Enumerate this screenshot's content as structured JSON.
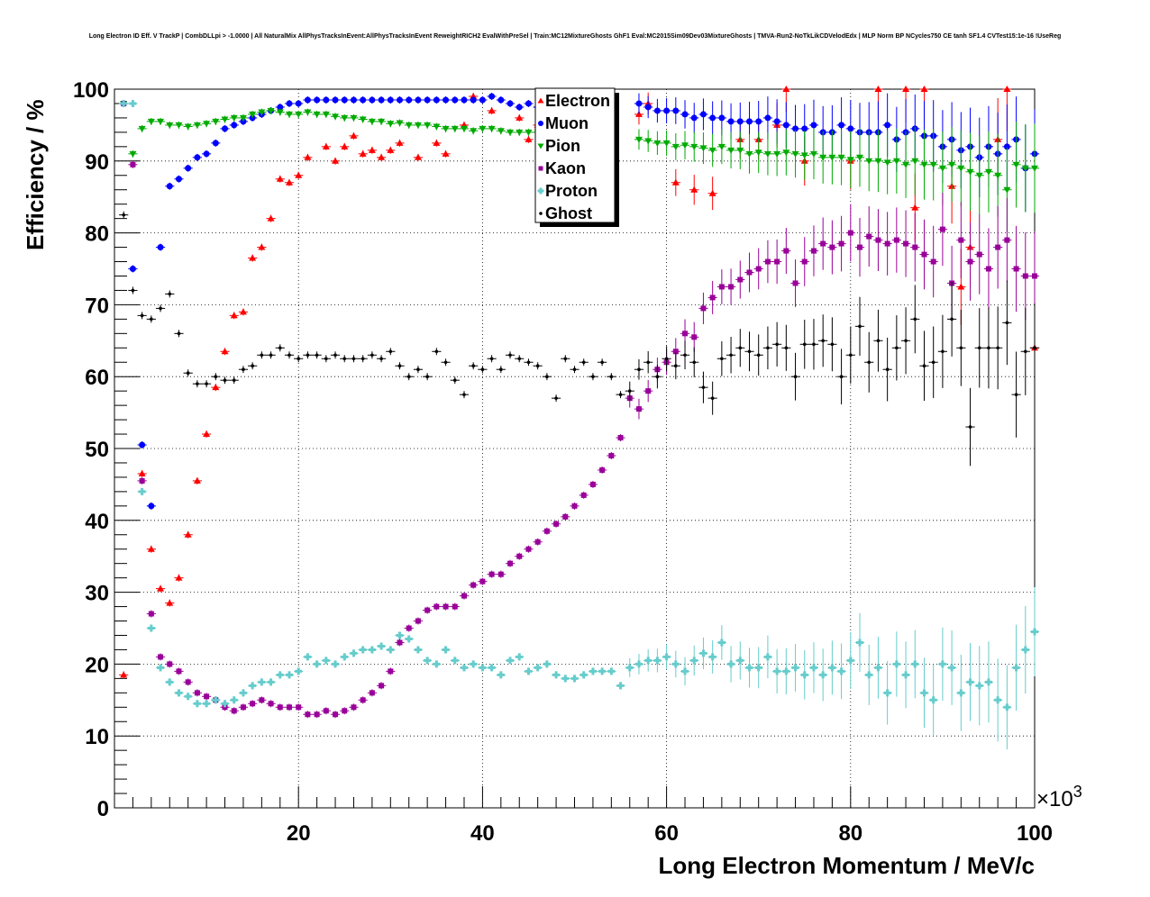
{
  "chart_data": {
    "type": "scatter",
    "title": "Long Electron ID Eff. V TrackP | CombDLLpi > -1.0000 | All NaturalMix AllPhysTracksInEvent:AllPhysTracksInEvent ReweightRICH2 EvalWithPreSel | Train:MC12MixtureGhosts GhF1 Eval:MC2015Sim09Dev03MixtureGhosts | TMVA-Run2-NoTkLikCDVelodEdx | MLP Norm BP NCycles750 CE tanh SF1.4 CVTest15:1e-16 !UseReg",
    "xlabel": "Long Electron Momentum / MeV/c",
    "ylabel": "Efficiency / %",
    "x_exponent_label": "×10",
    "x_exponent_power": "3",
    "xlim": [
      0,
      100000
    ],
    "ylim": [
      0,
      100
    ],
    "x_ticks": [
      20000,
      40000,
      60000,
      80000,
      100000
    ],
    "x_tick_labels": [
      "20",
      "40",
      "60",
      "80",
      "100"
    ],
    "y_ticks": [
      0,
      10,
      20,
      30,
      40,
      50,
      60,
      70,
      80,
      90,
      100
    ],
    "y_tick_labels": [
      "0",
      "10",
      "20",
      "30",
      "40",
      "50",
      "60",
      "70",
      "80",
      "90",
      "100"
    ],
    "grid": true,
    "legend_position": "top-center",
    "series": [
      {
        "name": "Electron",
        "marker": "triangle-up",
        "color": "#ff0000",
        "x": [
          1000,
          3000,
          4000,
          5000,
          6000,
          7000,
          8000,
          9000,
          10000,
          11000,
          12000,
          13000,
          14000,
          15000,
          16000,
          17000,
          18000,
          19000,
          20000,
          21000,
          23000,
          24000,
          25000,
          26000,
          27000,
          28000,
          29000,
          30000,
          31000,
          33000,
          35000,
          36000,
          38000,
          39000,
          41000,
          44000,
          45000,
          46000,
          48000,
          57000,
          58000,
          61000,
          63000,
          65000,
          68000,
          70000,
          72000,
          73000,
          75000,
          80000,
          83000,
          86000,
          87000,
          88000,
          91000,
          92000,
          93000,
          96000,
          97000,
          100000
        ],
        "y": [
          18.5,
          46.5,
          36,
          30.5,
          28.5,
          32,
          38,
          45.5,
          52,
          58.5,
          63.5,
          68.5,
          69,
          76.5,
          78,
          82,
          87.5,
          87,
          88,
          90.5,
          92,
          90,
          92,
          93.5,
          91,
          91.5,
          90.5,
          91.5,
          92.5,
          90.5,
          92.5,
          91,
          95,
          99,
          97,
          96,
          93,
          95,
          94.5,
          96.5,
          98,
          87,
          86,
          85.5,
          93,
          93,
          95,
          100,
          90,
          90,
          100,
          100,
          83.5,
          100,
          86.5,
          72.5,
          78,
          93,
          100,
          64
        ]
      },
      {
        "name": "Muon",
        "marker": "circle",
        "color": "#0000ff",
        "x": [
          1000,
          2000,
          3000,
          4000,
          5000,
          6000,
          7000,
          8000,
          9000,
          10000,
          11000,
          12000,
          13000,
          14000,
          15000,
          16000,
          17000,
          18000,
          19000,
          20000,
          21000,
          22000,
          23000,
          24000,
          25000,
          26000,
          27000,
          28000,
          29000,
          30000,
          31000,
          32000,
          33000,
          34000,
          35000,
          36000,
          37000,
          38000,
          39000,
          40000,
          41000,
          42000,
          43000,
          44000,
          45000,
          46000,
          47000,
          57000,
          58000,
          59000,
          60000,
          61000,
          62000,
          63000,
          64000,
          65000,
          66000,
          67000,
          68000,
          69000,
          70000,
          71000,
          72000,
          73000,
          74000,
          75000,
          76000,
          77000,
          78000,
          79000,
          80000,
          81000,
          82000,
          83000,
          84000,
          85000,
          86000,
          87000,
          88000,
          89000,
          90000,
          91000,
          92000,
          93000,
          94000,
          95000,
          96000,
          97000,
          98000,
          99000,
          100000
        ],
        "y": [
          98,
          75,
          50.5,
          42,
          78,
          86.5,
          87.5,
          89,
          90.5,
          91,
          92.5,
          94.5,
          95,
          95.5,
          96,
          96.5,
          97,
          97.5,
          98,
          98,
          98.5,
          98.5,
          98.5,
          98.5,
          98.5,
          98.5,
          98.5,
          98.5,
          98.5,
          98.5,
          98.5,
          98.5,
          98.5,
          98.5,
          98.5,
          98.5,
          98.5,
          98.5,
          98.5,
          98.5,
          99,
          98.5,
          98,
          97.5,
          98,
          97.5,
          98,
          98,
          97.5,
          97,
          97,
          97,
          96.5,
          96,
          96.5,
          96,
          96,
          95.5,
          95.5,
          95.5,
          95.5,
          96,
          95.5,
          95,
          94.5,
          94.5,
          95,
          94,
          94,
          95,
          94.5,
          94,
          94,
          94,
          95,
          93,
          94,
          94.5,
          93.5,
          93.5,
          92,
          93,
          91.5,
          92,
          90.5,
          92,
          91,
          92,
          93,
          89,
          91
        ]
      },
      {
        "name": "Pion",
        "marker": "triangle-down",
        "color": "#00aa00",
        "x": [
          1000,
          2000,
          3000,
          4000,
          5000,
          6000,
          7000,
          8000,
          9000,
          10000,
          11000,
          12000,
          13000,
          14000,
          15000,
          16000,
          17000,
          18000,
          19000,
          20000,
          21000,
          22000,
          23000,
          24000,
          25000,
          26000,
          27000,
          28000,
          29000,
          30000,
          31000,
          32000,
          33000,
          34000,
          35000,
          36000,
          37000,
          38000,
          39000,
          40000,
          41000,
          42000,
          43000,
          44000,
          45000,
          46000,
          47000,
          57000,
          58000,
          59000,
          60000,
          61000,
          62000,
          63000,
          64000,
          65000,
          66000,
          67000,
          68000,
          69000,
          70000,
          71000,
          72000,
          73000,
          74000,
          75000,
          76000,
          77000,
          78000,
          79000,
          80000,
          81000,
          82000,
          83000,
          84000,
          85000,
          86000,
          87000,
          88000,
          89000,
          90000,
          91000,
          92000,
          93000,
          94000,
          95000,
          96000,
          97000,
          98000,
          99000,
          100000
        ],
        "y": [
          98,
          91,
          94.5,
          95.5,
          95.5,
          95,
          95,
          94.8,
          95,
          95.2,
          95.5,
          95.8,
          96,
          96,
          96.5,
          96.8,
          97,
          96.8,
          96.5,
          96.5,
          96.8,
          96.5,
          96.5,
          96.2,
          96,
          96,
          95.8,
          95.5,
          95.5,
          95.2,
          95.3,
          95,
          95,
          95,
          94.8,
          94.5,
          94.5,
          94.5,
          94.2,
          94.5,
          94.5,
          94.2,
          94,
          94,
          94,
          94,
          94,
          93,
          92.8,
          92.5,
          92.5,
          92,
          92.2,
          92,
          91.8,
          91.5,
          92,
          91.5,
          91.5,
          91,
          91.2,
          91,
          91,
          91.2,
          91,
          90.8,
          91,
          90.5,
          90.5,
          90.5,
          90.2,
          90.5,
          90,
          90,
          89.8,
          90,
          89.5,
          90,
          89.5,
          89.5,
          89,
          89.5,
          89,
          88.5,
          88,
          88.5,
          88,
          86,
          89.5,
          89,
          89
        ]
      },
      {
        "name": "Kaon",
        "marker": "square",
        "color": "#990099",
        "x": [
          1000,
          2000,
          3000,
          4000,
          5000,
          6000,
          7000,
          8000,
          9000,
          10000,
          11000,
          12000,
          13000,
          14000,
          15000,
          16000,
          17000,
          18000,
          19000,
          20000,
          21000,
          22000,
          23000,
          24000,
          25000,
          26000,
          27000,
          28000,
          29000,
          30000,
          31000,
          32000,
          33000,
          34000,
          35000,
          36000,
          37000,
          38000,
          39000,
          40000,
          41000,
          42000,
          43000,
          44000,
          45000,
          46000,
          47000,
          48000,
          49000,
          50000,
          51000,
          52000,
          53000,
          54000,
          55000,
          56000,
          57000,
          58000,
          59000,
          60000,
          61000,
          62000,
          63000,
          64000,
          65000,
          66000,
          67000,
          68000,
          69000,
          70000,
          71000,
          72000,
          73000,
          74000,
          75000,
          76000,
          77000,
          78000,
          79000,
          80000,
          81000,
          82000,
          83000,
          84000,
          85000,
          86000,
          87000,
          88000,
          89000,
          90000,
          91000,
          92000,
          93000,
          94000,
          95000,
          96000,
          97000,
          98000,
          99000,
          100000
        ],
        "y": [
          98,
          89.5,
          45.5,
          27,
          21,
          20,
          19,
          17.5,
          16,
          15.5,
          15,
          14,
          13.5,
          14,
          14.5,
          15,
          14.5,
          14,
          14,
          14,
          13,
          13,
          13.5,
          13,
          13.5,
          14,
          15,
          16,
          17,
          19,
          23,
          25,
          26,
          27.5,
          28,
          28,
          28,
          29.5,
          31,
          31.5,
          32.5,
          32.5,
          34,
          35,
          36,
          37,
          38.5,
          39.5,
          40.5,
          42,
          43.5,
          45,
          47,
          49,
          51.5,
          57,
          55.5,
          58,
          61,
          62,
          63.5,
          66,
          65.5,
          69.5,
          71,
          72.5,
          72.5,
          73.5,
          74.5,
          75,
          76,
          76,
          77.5,
          73,
          76,
          77.5,
          78.5,
          78,
          78.5,
          80,
          78,
          79.5,
          79,
          78.5,
          79,
          78.5,
          78,
          77,
          76,
          80.5,
          73,
          79,
          76,
          77,
          75,
          78,
          79,
          75,
          74,
          74
        ]
      },
      {
        "name": "Proton",
        "marker": "cross",
        "color": "#66cccc",
        "x": [
          1000,
          2000,
          3000,
          4000,
          5000,
          6000,
          7000,
          8000,
          9000,
          10000,
          11000,
          12000,
          13000,
          14000,
          15000,
          16000,
          17000,
          18000,
          19000,
          20000,
          21000,
          22000,
          23000,
          24000,
          25000,
          26000,
          27000,
          28000,
          29000,
          30000,
          31000,
          32000,
          33000,
          34000,
          35000,
          36000,
          37000,
          38000,
          39000,
          40000,
          41000,
          42000,
          43000,
          44000,
          45000,
          46000,
          47000,
          48000,
          49000,
          50000,
          51000,
          52000,
          53000,
          54000,
          55000,
          56000,
          57000,
          58000,
          59000,
          60000,
          61000,
          62000,
          63000,
          64000,
          65000,
          66000,
          67000,
          68000,
          69000,
          70000,
          71000,
          72000,
          73000,
          74000,
          75000,
          76000,
          77000,
          78000,
          79000,
          80000,
          81000,
          82000,
          83000,
          84000,
          85000,
          86000,
          87000,
          88000,
          89000,
          90000,
          91000,
          92000,
          93000,
          94000,
          95000,
          96000,
          97000,
          98000,
          99000,
          100000
        ],
        "y": [
          98,
          98,
          44,
          25,
          19.5,
          17.5,
          16,
          15.5,
          14.5,
          14.5,
          15,
          14.5,
          15,
          16,
          17,
          17.5,
          17.5,
          18.5,
          18.5,
          19,
          21,
          20,
          20.5,
          20,
          21,
          21.5,
          22,
          22,
          22.5,
          22,
          24,
          23.5,
          22,
          20.5,
          20,
          22,
          20.5,
          19.5,
          20,
          19.5,
          19.5,
          18.5,
          20.5,
          21,
          19,
          19.5,
          20,
          18.5,
          18,
          18,
          18.5,
          19,
          19,
          19,
          17,
          19.5,
          20,
          20.5,
          20.5,
          21,
          20,
          19,
          20.5,
          21.5,
          21,
          23,
          20,
          20.5,
          19.5,
          19.5,
          21,
          19,
          19,
          19.5,
          18.5,
          19.5,
          18.5,
          19.5,
          19,
          20.5,
          23,
          18.5,
          19.5,
          16,
          20,
          18.5,
          20,
          16,
          15,
          20,
          19.5,
          16,
          17.5,
          17,
          17.5,
          15,
          14,
          19.5,
          22,
          24.5
        ]
      },
      {
        "name": "Ghost",
        "marker": "plus",
        "color": "#000000",
        "x": [
          1000,
          2000,
          3000,
          4000,
          5000,
          6000,
          7000,
          8000,
          9000,
          10000,
          11000,
          12000,
          13000,
          14000,
          15000,
          16000,
          17000,
          18000,
          19000,
          20000,
          21000,
          22000,
          23000,
          24000,
          25000,
          26000,
          27000,
          28000,
          29000,
          30000,
          31000,
          32000,
          33000,
          34000,
          35000,
          36000,
          37000,
          38000,
          39000,
          40000,
          41000,
          42000,
          43000,
          44000,
          45000,
          46000,
          47000,
          48000,
          49000,
          50000,
          51000,
          52000,
          53000,
          54000,
          55000,
          56000,
          57000,
          58000,
          59000,
          60000,
          61000,
          62000,
          63000,
          64000,
          65000,
          66000,
          67000,
          68000,
          69000,
          70000,
          71000,
          72000,
          73000,
          74000,
          75000,
          76000,
          77000,
          78000,
          79000,
          80000,
          81000,
          82000,
          83000,
          84000,
          85000,
          86000,
          87000,
          88000,
          89000,
          90000,
          91000,
          92000,
          93000,
          94000,
          95000,
          96000,
          97000,
          98000,
          99000,
          100000
        ],
        "y": [
          82.5,
          72,
          68.5,
          68,
          69.5,
          71.5,
          66,
          60.5,
          59,
          59,
          60,
          59.5,
          59.5,
          61,
          61.5,
          63,
          63,
          64,
          63,
          62.5,
          63,
          63,
          62.5,
          63,
          62.5,
          62.5,
          62.5,
          63,
          62.5,
          63.5,
          61.5,
          60,
          61,
          60,
          63.5,
          62,
          59.5,
          57.5,
          61.5,
          61,
          62.5,
          61,
          63,
          62.5,
          62,
          61.5,
          60,
          57,
          62.5,
          61,
          62,
          60,
          62,
          60,
          57.5,
          58,
          61,
          62,
          60,
          62.5,
          61.5,
          63,
          62,
          58.5,
          57,
          62.5,
          63,
          64,
          63.5,
          63,
          64,
          64.5,
          64,
          60,
          64.5,
          64.5,
          65,
          64.5,
          60,
          63,
          67,
          62,
          65,
          61,
          64,
          65,
          68,
          61.5,
          62,
          63.5,
          68,
          64,
          53,
          64,
          64,
          64,
          67.5,
          57.5,
          63.5,
          64
        ]
      }
    ]
  }
}
